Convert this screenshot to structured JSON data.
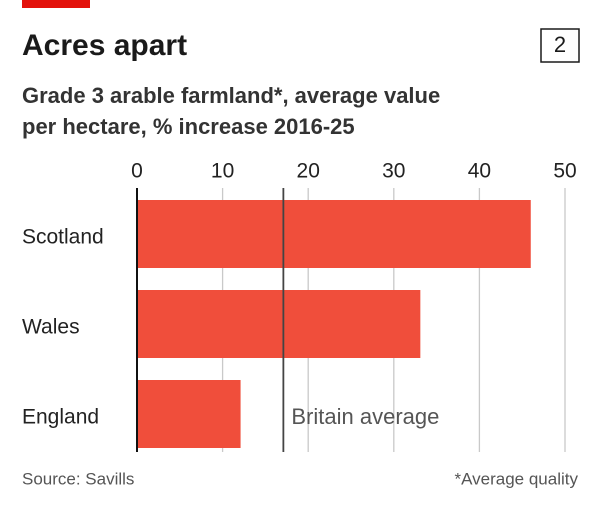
{
  "chart_data": {
    "type": "bar",
    "orientation": "horizontal",
    "title": "Acres apart",
    "page_number": "2",
    "subtitle": [
      "Grade 3 arable farmland*, average value",
      "per hectare, % increase 2016-25"
    ],
    "categories": [
      "Scotland",
      "Wales",
      "England"
    ],
    "values": [
      46.0,
      33.1,
      12.1
    ],
    "color": "#f04e3b",
    "xlim": [
      0,
      50
    ],
    "xticks": [
      0,
      10,
      20,
      30,
      40,
      50
    ],
    "grid": true,
    "reference_line": {
      "label": "Britain average",
      "value": 17.1
    },
    "source": "Source: Savills",
    "footnote": "*Average quality"
  }
}
